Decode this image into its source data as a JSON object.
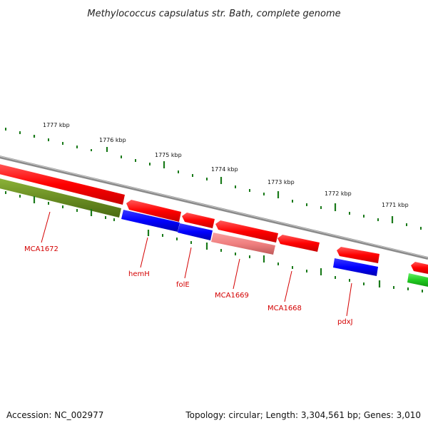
{
  "title": "Methylococcus capsulatus str. Bath, complete genome",
  "footer": {
    "accession": "Accession: NC_002977",
    "summary": "Topology: circular; Length: 3,304,561 bp; Genes: 3,010"
  },
  "scale_labels": [
    "1777 kbp",
    "1776 kbp",
    "1775 kbp",
    "1774 kbp",
    "1773 kbp",
    "1772 kbp",
    "1771 kbp"
  ],
  "gene_labels": [
    "MCA1672",
    "hemH",
    "folE",
    "MCA1669",
    "MCA1668",
    "pdxJ"
  ],
  "colors": {
    "backbone": "#8a8a8a",
    "cds_forward": "#ff0000",
    "cds_reverse_blue": "#0000ff",
    "cds_olive": "#6b8e23",
    "cds_pink": "#f08080",
    "cds_green": "#22cc22",
    "ticks": "#1a7a1a",
    "gene_label": "#d40000"
  }
}
